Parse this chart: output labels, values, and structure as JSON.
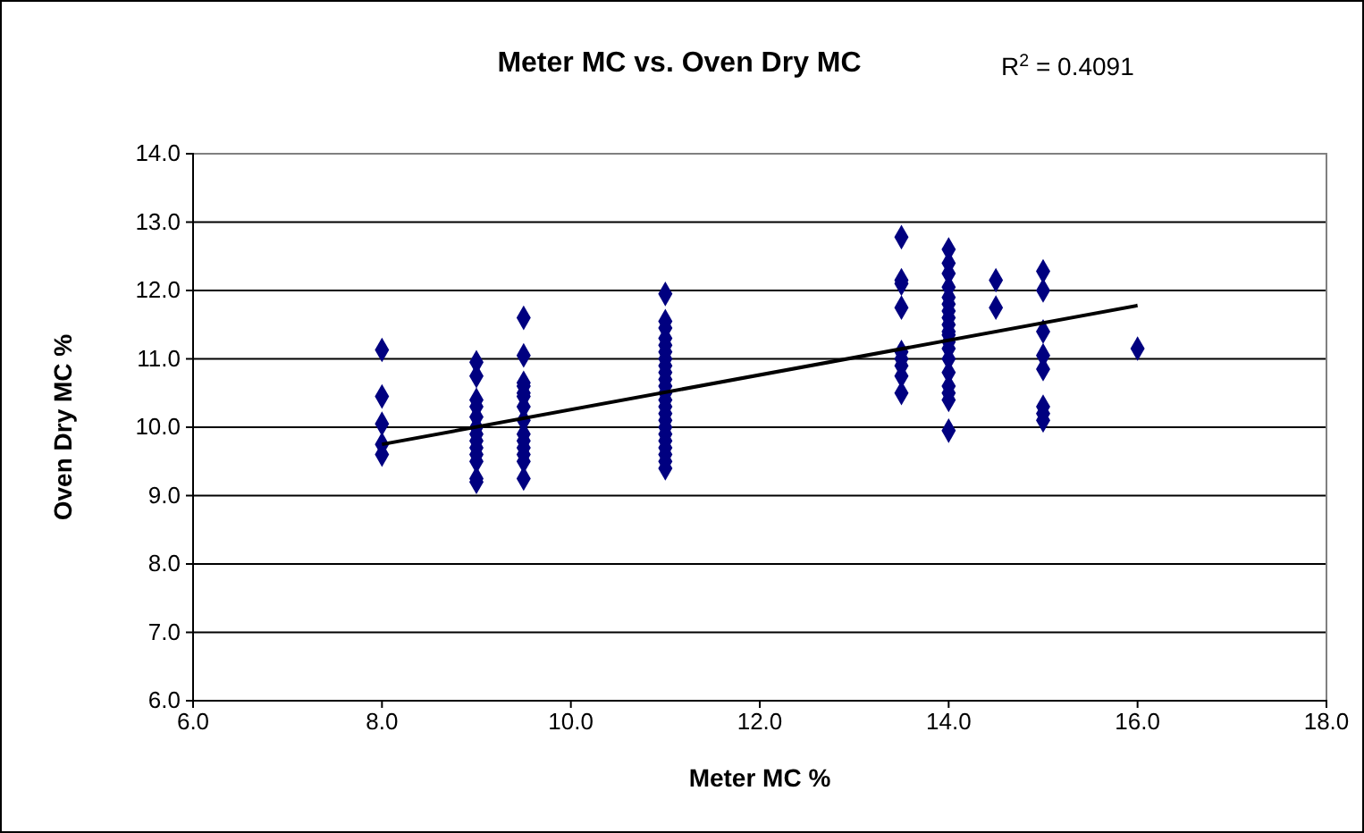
{
  "chart_data": {
    "type": "scatter",
    "title": "Meter MC vs. Oven Dry MC",
    "xlabel": "Meter MC %",
    "ylabel": "Oven Dry MC %",
    "annotations": [
      "R$^{2}$ = 0.4091"
    ],
    "xlim": [
      6,
      18
    ],
    "xticks": [
      {
        "value": 6,
        "label": "6.0"
      },
      {
        "value": 8,
        "label": "8.0"
      },
      {
        "value": 10,
        "label": "10.0"
      },
      {
        "value": 12,
        "label": "12.0"
      },
      {
        "value": 14,
        "label": "14.0"
      },
      {
        "value": 16,
        "label": "16.0"
      },
      {
        "value": 18,
        "label": "18.0"
      }
    ],
    "ylim": [
      6,
      14
    ],
    "yticks": [
      {
        "value": 6,
        "label": "6.0"
      },
      {
        "value": 7,
        "label": "7.0"
      },
      {
        "value": 8,
        "label": "8.0"
      },
      {
        "value": 9,
        "label": "9.0"
      },
      {
        "value": 10,
        "label": "10.0"
      },
      {
        "value": 11,
        "label": "11.0"
      },
      {
        "value": 12,
        "label": "12.0"
      },
      {
        "value": 13,
        "label": "13.0"
      },
      {
        "value": 14,
        "label": "14.0"
      }
    ],
    "grid": "y",
    "marker": "diamond",
    "series": [
      {
        "color": "#000080",
        "x": [
          8,
          8,
          8,
          8,
          8,
          9,
          9,
          9,
          9,
          9,
          9,
          9,
          9,
          9,
          9,
          9,
          9,
          9,
          9.5,
          9.5,
          9.5,
          9.5,
          9.5,
          9.5,
          9.5,
          9.5,
          9.5,
          9.5,
          9.5,
          9.5,
          9.5,
          9.5,
          11,
          11,
          11,
          11,
          11,
          11,
          11,
          11,
          11,
          11,
          11,
          11,
          11,
          11,
          11,
          11,
          11,
          11,
          11,
          11,
          11,
          11,
          11,
          13.5,
          13.5,
          13.5,
          13.5,
          13.5,
          13.5,
          13.5,
          13.5,
          13.5,
          14,
          14,
          14,
          14,
          14,
          14,
          14,
          14,
          14,
          14,
          14,
          14,
          14,
          14,
          14,
          14,
          14,
          14,
          14,
          14.5,
          14.5,
          15,
          15,
          15,
          15,
          15,
          15,
          15,
          15,
          16
        ],
        "values": [
          11.13,
          10.45,
          10.05,
          9.75,
          9.6,
          10.95,
          10.75,
          10.4,
          10.3,
          10.15,
          10.0,
          9.9,
          9.8,
          9.7,
          9.6,
          9.5,
          9.25,
          9.2,
          11.6,
          11.05,
          10.65,
          10.6,
          10.5,
          10.45,
          10.3,
          10.1,
          9.9,
          9.8,
          9.7,
          9.6,
          9.5,
          9.25,
          11.95,
          11.55,
          11.45,
          11.3,
          11.2,
          11.1,
          11.0,
          10.9,
          10.8,
          10.7,
          10.6,
          10.5,
          10.4,
          10.3,
          10.2,
          10.1,
          10.0,
          9.9,
          9.8,
          9.7,
          9.6,
          9.5,
          9.4,
          12.78,
          12.15,
          12.1,
          11.75,
          11.1,
          11.0,
          10.9,
          10.75,
          10.5,
          12.6,
          12.4,
          12.25,
          12.05,
          11.9,
          11.8,
          11.7,
          11.6,
          11.5,
          11.4,
          11.35,
          11.25,
          11.15,
          11.0,
          10.8,
          10.6,
          10.5,
          10.4,
          9.95,
          12.15,
          11.75,
          12.28,
          12.0,
          11.4,
          11.05,
          10.85,
          10.3,
          10.2,
          10.1,
          11.15
        ]
      },
      {
        "type": "line",
        "color": "#000000",
        "marker": "none",
        "x": [
          8,
          16
        ],
        "values": [
          9.75,
          11.78
        ]
      }
    ]
  }
}
